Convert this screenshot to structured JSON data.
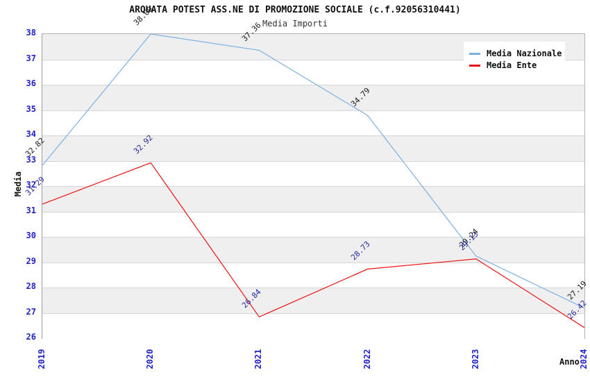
{
  "title": "ARQUATA POTEST ASS.NE DI PROMOZIONE SOCIALE (c.f.92056310441)",
  "subtitle": "Media Importi",
  "chart_data": {
    "type": "line",
    "x": [
      "2019",
      "2020",
      "2021",
      "2022",
      "2023",
      "2024"
    ],
    "series": [
      {
        "name": "Media Nazionale",
        "color": "#7cb1e3",
        "label_color": "#1a1a1a",
        "values": [
          32.82,
          38.0,
          37.36,
          34.79,
          29.24,
          27.19
        ]
      },
      {
        "name": "Media Ente",
        "color": "#ee1111",
        "label_color": "#28289e",
        "values": [
          31.29,
          32.92,
          26.84,
          28.73,
          29.13,
          26.42
        ]
      }
    ],
    "xlabel": "Anno",
    "ylabel": "Media",
    "ylim": [
      26,
      38
    ],
    "ytick_step": 1,
    "grid": "horizontal",
    "legend_position": "top-right",
    "value_labels": "rotated-45",
    "point_label_decimals": 2
  },
  "colors": {
    "tick_label": "#2222cc",
    "band_gray": "#efefef",
    "band_white": "#ffffff",
    "grid_line": "#d6d6d6",
    "plot_border": "#b3b3b3"
  }
}
